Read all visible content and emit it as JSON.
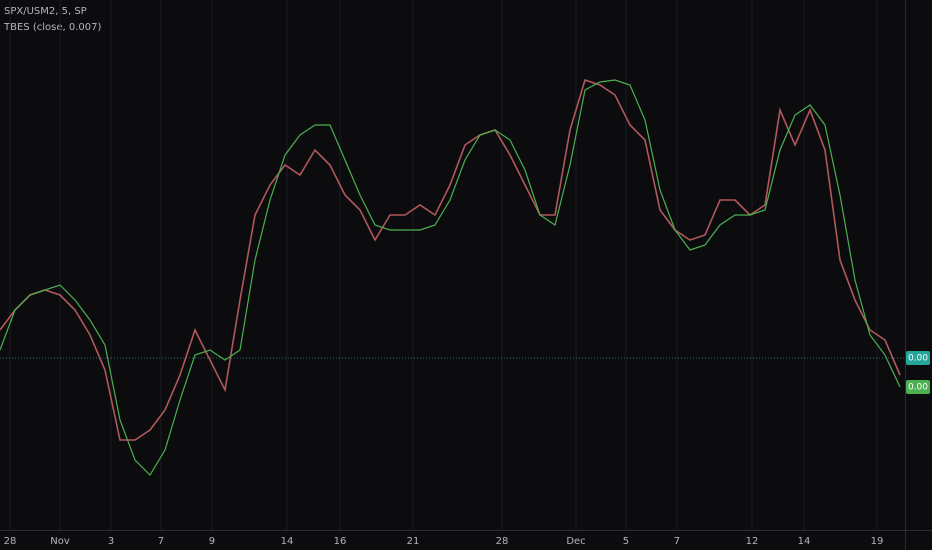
{
  "chart_data": {
    "type": "line",
    "title": "SPX/USM2, 5, SP",
    "subtitle": "TBES (close, 0.007)",
    "x": [
      0,
      1,
      2,
      3,
      4,
      5,
      6,
      7,
      8,
      9,
      10,
      11,
      12,
      13,
      14,
      15,
      16,
      17,
      18,
      19,
      20,
      21,
      22,
      23,
      24,
      25,
      26,
      27,
      28,
      29,
      30,
      31,
      32,
      33,
      34,
      35,
      36,
      37,
      38,
      39,
      40,
      41,
      42,
      43,
      44,
      45,
      46,
      47,
      48,
      49,
      50,
      51,
      52,
      53,
      54,
      55,
      56,
      57,
      58,
      59,
      60
    ],
    "xlim": [
      0,
      60
    ],
    "xticks": [
      {
        "value": 0.67,
        "label": "28"
      },
      {
        "value": 4,
        "label": "Nov"
      },
      {
        "value": 7.4,
        "label": "3"
      },
      {
        "value": 10.73,
        "label": "7"
      },
      {
        "value": 14.13,
        "label": "9"
      },
      {
        "value": 19.13,
        "label": "14"
      },
      {
        "value": 22.67,
        "label": "16"
      },
      {
        "value": 27.53,
        "label": "21"
      },
      {
        "value": 33.47,
        "label": "28"
      },
      {
        "value": 38.4,
        "label": "Dec"
      },
      {
        "value": 41.73,
        "label": "5"
      },
      {
        "value": 45.13,
        "label": "7"
      },
      {
        "value": 50.13,
        "label": "12"
      },
      {
        "value": 53.6,
        "label": "14"
      },
      {
        "value": 58.47,
        "label": "19"
      }
    ],
    "ylim": [
      -0.00172,
      0.00358
    ],
    "grid": true,
    "price_line": {
      "value": 0,
      "label": "0.00",
      "color": "#26a69a"
    },
    "series": [
      {
        "name": "SPX/USM2",
        "color": "#b0585a",
        "values": [
          0.00028,
          0.00048,
          0.00063,
          0.00068,
          0.00063,
          0.00048,
          0.00023,
          -0.00012,
          -0.00082,
          -0.00082,
          -0.00072,
          -0.00052,
          -0.00017,
          0.00028,
          -2e-05,
          -0.00032,
          0.00058,
          0.00143,
          0.00173,
          0.00193,
          0.00183,
          0.00208,
          0.00193,
          0.00163,
          0.00148,
          0.00118,
          0.00143,
          0.00143,
          0.00153,
          0.00143,
          0.00173,
          0.00213,
          0.00223,
          0.00228,
          0.00203,
          0.00173,
          0.00143,
          0.00143,
          0.00228,
          0.00278,
          0.00273,
          0.00263,
          0.00233,
          0.00218,
          0.00148,
          0.00128,
          0.00118,
          0.00123,
          0.00158,
          0.00158,
          0.00143,
          0.00153,
          0.00248,
          0.00213,
          0.00248,
          0.00208,
          0.00098,
          0.00058,
          0.00028,
          0.00018,
          -0.00017
        ]
      },
      {
        "name": "TBES",
        "color": "#4caf50",
        "values": [
          8e-05,
          0.00048,
          0.00063,
          0.00068,
          0.00073,
          0.00058,
          0.00038,
          0.00013,
          -0.00062,
          -0.00102,
          -0.00117,
          -0.00092,
          -0.00042,
          3e-05,
          8e-05,
          -2e-05,
          8e-05,
          0.00098,
          0.00158,
          0.00203,
          0.00223,
          0.00233,
          0.00233,
          0.00198,
          0.00163,
          0.00133,
          0.00128,
          0.00128,
          0.00128,
          0.00133,
          0.00158,
          0.00198,
          0.00223,
          0.00228,
          0.00218,
          0.00188,
          0.00143,
          0.00133,
          0.00193,
          0.00268,
          0.00276,
          0.00278,
          0.00273,
          0.00238,
          0.00168,
          0.00128,
          0.00108,
          0.00113,
          0.00133,
          0.00143,
          0.00143,
          0.00148,
          0.00208,
          0.00243,
          0.00253,
          0.00233,
          0.00163,
          0.00078,
          0.00023,
          3e-05,
          -0.00029
        ],
        "tag": {
          "value": -0.00029,
          "label": "0.00"
        }
      }
    ]
  }
}
